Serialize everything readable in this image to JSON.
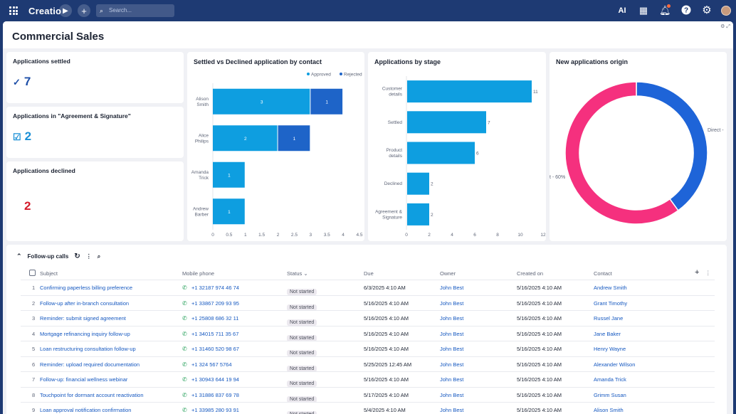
{
  "topbar": {
    "logo": "Creatio",
    "search_placeholder": "Search...",
    "ai_label": "AI"
  },
  "page": {
    "title": "Commercial Sales"
  },
  "metrics": [
    {
      "title": "Applications settled",
      "value": "7",
      "icon": "check-icon",
      "color": "#1e4fa8"
    },
    {
      "title": "Applications in \"Agreement & Signature\"",
      "value": "2",
      "icon": "checklist-icon",
      "color": "#1a8fd6"
    },
    {
      "title": "Applications declined",
      "value": "2",
      "icon": "",
      "color": "#d41c2c"
    }
  ],
  "charts": {
    "contact": {
      "title": "Settled vs Declined application by contact"
    },
    "stage": {
      "title": "Applications by stage"
    },
    "origin": {
      "title": "New applications origin"
    }
  },
  "chart_data": [
    {
      "type": "bar",
      "orientation": "horizontal",
      "stacked": true,
      "title": "Settled vs Declined application by contact",
      "categories": [
        "Alison Smith",
        "Alice Philips",
        "Amanda Trick",
        "Andrew Barber"
      ],
      "series": [
        {
          "name": "Approved",
          "values": [
            3,
            2,
            1,
            1
          ],
          "color": "#0e9ee0"
        },
        {
          "name": "Rejected",
          "values": [
            1,
            1,
            0,
            0
          ],
          "color": "#1e64c8"
        }
      ],
      "xlim": [
        0,
        4.5
      ],
      "xticks": [
        "0",
        "0.5",
        "1",
        "1.5",
        "2",
        "2.5",
        "3",
        "3.5",
        "4",
        "4.5"
      ],
      "legend": "top-right"
    },
    {
      "type": "bar",
      "orientation": "horizontal",
      "title": "Applications by stage",
      "categories": [
        "Customer details",
        "Settled",
        "Product details",
        "Declined",
        "Agreement & Signature"
      ],
      "values": [
        11,
        7,
        6,
        2,
        2
      ],
      "color": "#0e9ee0",
      "xlim": [
        0,
        12
      ],
      "xticks": [
        "0",
        "2",
        "4",
        "6",
        "8",
        "10",
        "12"
      ]
    },
    {
      "type": "pie",
      "donut": true,
      "title": "New applications origin",
      "slices": [
        {
          "label": "Direct -",
          "value": 40,
          "color": "#1e64d8"
        },
        {
          "label": "t - 60%",
          "value": 60,
          "color": "#f5307e"
        }
      ]
    }
  ],
  "table": {
    "title": "Follow-up calls",
    "columns": [
      "Subject",
      "Mobile phone",
      "Status",
      "Due",
      "Owner",
      "Created on",
      "Contact"
    ],
    "rows": [
      {
        "n": "1",
        "subject": "Confirming paperless billing preference",
        "phone": "+1 32187 974 46 74",
        "status": "Not started",
        "due": "6/3/2025 4:10 AM",
        "owner": "John Best",
        "created": "5/16/2025 4:10 AM",
        "contact": "Andrew Smith"
      },
      {
        "n": "2",
        "subject": "Follow-up after in-branch consultation",
        "phone": "+1 33867 209 93 95",
        "status": "Not started",
        "due": "5/16/2025 4:10 AM",
        "owner": "John Best",
        "created": "5/16/2025 4:10 AM",
        "contact": "Grant Timothy"
      },
      {
        "n": "3",
        "subject": "Reminder: submit signed agreement",
        "phone": "+1 25808 686 32 11",
        "status": "Not started",
        "due": "5/16/2025 4:10 AM",
        "owner": "John Best",
        "created": "5/16/2025 4:10 AM",
        "contact": "Russel Jane"
      },
      {
        "n": "4",
        "subject": "Mortgage refinancing inquiry follow-up",
        "phone": "+1 34015 711 35 67",
        "status": "Not started",
        "due": "5/16/2025 4:10 AM",
        "owner": "John Best",
        "created": "5/16/2025 4:10 AM",
        "contact": "Jane Baker"
      },
      {
        "n": "5",
        "subject": "Loan restructuring consultation follow-up",
        "phone": "+1 31460 520 98 67",
        "status": "Not started",
        "due": "5/16/2025 4:10 AM",
        "owner": "John Best",
        "created": "5/16/2025 4:10 AM",
        "contact": "Henry Wayne"
      },
      {
        "n": "6",
        "subject": "Reminder: upload required documentation",
        "phone": "+1 324 567 5764",
        "status": "Not started",
        "due": "5/25/2025 12:45 AM",
        "owner": "John Best",
        "created": "5/16/2025 4:10 AM",
        "contact": "Alexander Wilson"
      },
      {
        "n": "7",
        "subject": "Follow-up: financial wellness webinar",
        "phone": "+1 30943 644 19 94",
        "status": "Not started",
        "due": "5/16/2025 4:10 AM",
        "owner": "John Best",
        "created": "5/16/2025 4:10 AM",
        "contact": "Amanda Trick"
      },
      {
        "n": "8",
        "subject": "Touchpoint for dormant account reactivation",
        "phone": "+1 31886 837 69 78",
        "status": "Not started",
        "due": "5/17/2025 4:10 AM",
        "owner": "John Best",
        "created": "5/16/2025 4:10 AM",
        "contact": "Grimm Susan"
      },
      {
        "n": "9",
        "subject": "Loan approval notification confirmation",
        "phone": "+1 33985 280 93 91",
        "status": "Not started",
        "due": "5/4/2025 4:10 AM",
        "owner": "John Best",
        "created": "5/16/2025 4:10 AM",
        "contact": "Alison Smith"
      }
    ]
  }
}
